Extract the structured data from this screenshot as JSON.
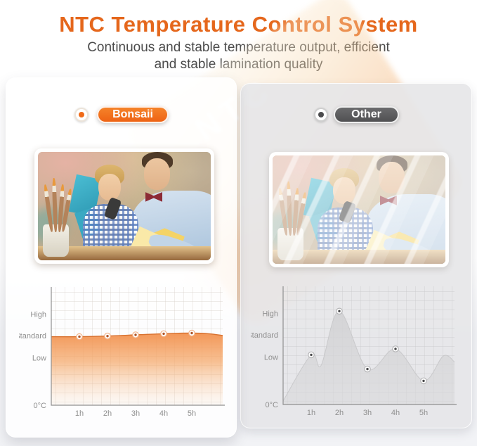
{
  "header": {
    "title": "NTC Temperature Control System",
    "subtitle_line1": "Continuous and stable temperature output, efficient",
    "subtitle_line2": "and stable lamination quality"
  },
  "watermark": {
    "text": "NTC"
  },
  "panels": {
    "bonsaii": {
      "label": "Bonsaii",
      "accent_color": "#f06e17",
      "radio_selected": true,
      "photo_alt": "Father and son doing paper crafts, crisp laminated photo"
    },
    "other": {
      "label": "Other",
      "accent_color": "#565658",
      "radio_selected": true,
      "photo_alt": "Same photo hazy and wrinkled from poor lamination"
    }
  },
  "chart_data": [
    {
      "id": "bonsaii",
      "type": "area",
      "series_name": "Bonsaii temperature over time",
      "xlim": [
        0,
        6.1
      ],
      "ylim": [
        0,
        100
      ],
      "grid": true,
      "x_hours": [
        0,
        1,
        2,
        3,
        4,
        5,
        5.6,
        6.1
      ],
      "values": [
        58,
        58,
        58.5,
        59.5,
        60.5,
        61,
        60.5,
        59
      ],
      "dot_hours": [
        1,
        2,
        3,
        4,
        5
      ],
      "dot_values": [
        58,
        58.5,
        59.5,
        60.5,
        61
      ],
      "x_tick_labels": [
        "1h",
        "2h",
        "3h",
        "4h",
        "5h"
      ],
      "y_axis_labels": [
        {
          "label": "High",
          "value": 77
        },
        {
          "label": "Standard",
          "value": 59
        },
        {
          "label": "Low",
          "value": 40
        },
        {
          "label": "0°C",
          "value": 0
        }
      ],
      "grid_color": "#d5cdc6",
      "line_color": "#d8712f",
      "line_width": 1.4,
      "dot_ring": "#f2b289",
      "dot_color": "#b05527",
      "fill_stops": [
        [
          "0%",
          "#f2914f",
          0.95
        ],
        [
          "40%",
          "#f5a869",
          0.72
        ],
        [
          "100%",
          "#f9d9bb",
          0.12
        ]
      ]
    },
    {
      "id": "other",
      "type": "area",
      "series_name": "Other brand temperature over time",
      "xlim": [
        0,
        6.1
      ],
      "ylim": [
        0,
        100
      ],
      "grid": true,
      "x_hours": [
        0,
        1,
        1.35,
        2,
        3,
        4,
        5,
        5.7,
        6.1
      ],
      "values": [
        3,
        42,
        33,
        79,
        30,
        47,
        20,
        41,
        36
      ],
      "dot_hours": [
        1,
        2,
        3,
        4,
        5
      ],
      "dot_values": [
        42,
        79,
        30,
        47,
        20
      ],
      "x_tick_labels": [
        "1h",
        "2h",
        "3h",
        "4h",
        "5h"
      ],
      "y_axis_labels": [
        {
          "label": "High",
          "value": 77
        },
        {
          "label": "Standard",
          "value": 59
        },
        {
          "label": "Low",
          "value": 40
        },
        {
          "label": "0°C",
          "value": 0
        }
      ],
      "grid_color": "#c6c6c8",
      "line_color": "#c9c9cb",
      "line_width": 1,
      "dot_ring": "#b4b4b6",
      "dot_color": "#4a4a4c",
      "fill_stops": [
        [
          "0%",
          "#d2d2d4",
          0.92
        ],
        [
          "100%",
          "#d8d8da",
          0.55
        ]
      ]
    }
  ]
}
